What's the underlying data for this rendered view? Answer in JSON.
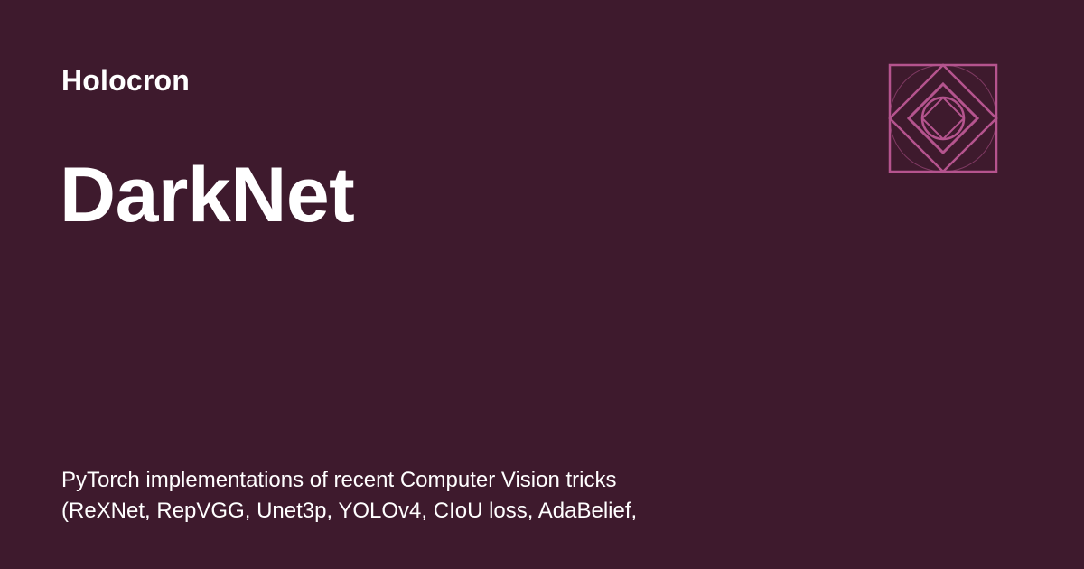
{
  "site": {
    "name": "Holocron"
  },
  "page": {
    "title": "DarkNet",
    "description_lines": [
      "PyTorch implementations of recent Computer Vision tricks",
      "(ReXNet, RepVGG, Unet3p, YOLOv4, CIoU loss, AdaBelief,"
    ]
  },
  "logo": {
    "icon": "geometric-diamond-logo-icon",
    "color": "#b5548e"
  },
  "colors": {
    "background": "#3e1a2d",
    "text": "#ffffff"
  }
}
